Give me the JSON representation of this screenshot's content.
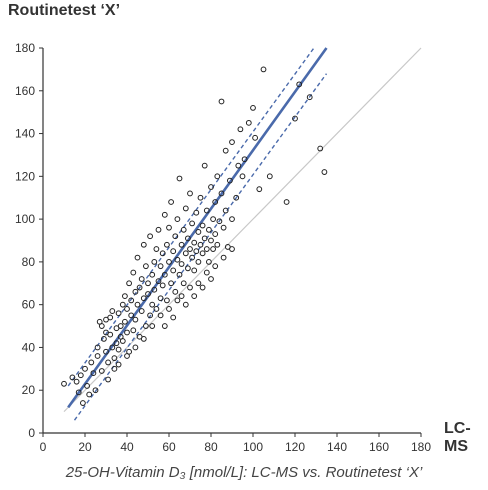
{
  "chart_data": {
    "type": "scatter",
    "title": "",
    "xlabel": "LC-MS",
    "ylabel": "Routinetest ‘X’",
    "caption": "25-OH-Vitamin D₃ [nmol/L]: LC-MS vs. Routinetest ‘X’",
    "xlim": [
      0,
      180
    ],
    "ylim": [
      0,
      180
    ],
    "x_ticks": [
      0,
      20,
      40,
      60,
      80,
      100,
      120,
      140,
      160,
      180
    ],
    "y_ticks": [
      0,
      20,
      40,
      60,
      80,
      100,
      120,
      140,
      160,
      180
    ],
    "grid": false,
    "legend": "none",
    "reference_lines": [
      {
        "kind": "identity",
        "from": [
          10,
          10
        ],
        "to": [
          180,
          180
        ],
        "style": "solid",
        "color": "#c8c8c8"
      },
      {
        "kind": "regression",
        "from": [
          12,
          12
        ],
        "to": [
          135,
          180
        ],
        "style": "solid",
        "color": "#4a6aab"
      },
      {
        "kind": "confidence-upper",
        "from": [
          12,
          22
        ],
        "to": [
          129,
          180
        ],
        "style": "dashed",
        "color": "#4a6aab"
      },
      {
        "kind": "confidence-lower",
        "from": [
          15,
          6
        ],
        "to": [
          135,
          168
        ],
        "style": "dashed",
        "color": "#4a6aab"
      }
    ],
    "points": [
      {
        "x": 10,
        "y": 23
      },
      {
        "x": 14,
        "y": 26
      },
      {
        "x": 16,
        "y": 24
      },
      {
        "x": 17,
        "y": 19
      },
      {
        "x": 18,
        "y": 27
      },
      {
        "x": 19,
        "y": 14
      },
      {
        "x": 20,
        "y": 30
      },
      {
        "x": 21,
        "y": 22
      },
      {
        "x": 22,
        "y": 18
      },
      {
        "x": 23,
        "y": 33
      },
      {
        "x": 24,
        "y": 28
      },
      {
        "x": 25,
        "y": 20
      },
      {
        "x": 26,
        "y": 40
      },
      {
        "x": 26,
        "y": 36
      },
      {
        "x": 27,
        "y": 52
      },
      {
        "x": 28,
        "y": 50
      },
      {
        "x": 28,
        "y": 29
      },
      {
        "x": 29,
        "y": 44
      },
      {
        "x": 30,
        "y": 47
      },
      {
        "x": 30,
        "y": 38
      },
      {
        "x": 30,
        "y": 53
      },
      {
        "x": 31,
        "y": 25
      },
      {
        "x": 31,
        "y": 33
      },
      {
        "x": 32,
        "y": 46
      },
      {
        "x": 32,
        "y": 54
      },
      {
        "x": 33,
        "y": 40
      },
      {
        "x": 33,
        "y": 57
      },
      {
        "x": 34,
        "y": 35
      },
      {
        "x": 34,
        "y": 30
      },
      {
        "x": 35,
        "y": 49
      },
      {
        "x": 35,
        "y": 42
      },
      {
        "x": 36,
        "y": 56
      },
      {
        "x": 36,
        "y": 39
      },
      {
        "x": 37,
        "y": 50
      },
      {
        "x": 37,
        "y": 45
      },
      {
        "x": 38,
        "y": 60
      },
      {
        "x": 38,
        "y": 43
      },
      {
        "x": 39,
        "y": 52
      },
      {
        "x": 39,
        "y": 64
      },
      {
        "x": 40,
        "y": 58
      },
      {
        "x": 40,
        "y": 47
      },
      {
        "x": 41,
        "y": 38
      },
      {
        "x": 41,
        "y": 70
      },
      {
        "x": 42,
        "y": 55
      },
      {
        "x": 42,
        "y": 62
      },
      {
        "x": 43,
        "y": 48
      },
      {
        "x": 43,
        "y": 75
      },
      {
        "x": 44,
        "y": 66
      },
      {
        "x": 44,
        "y": 53
      },
      {
        "x": 45,
        "y": 60
      },
      {
        "x": 45,
        "y": 82
      },
      {
        "x": 46,
        "y": 45
      },
      {
        "x": 46,
        "y": 68
      },
      {
        "x": 47,
        "y": 72
      },
      {
        "x": 47,
        "y": 57
      },
      {
        "x": 48,
        "y": 63
      },
      {
        "x": 48,
        "y": 88
      },
      {
        "x": 49,
        "y": 50
      },
      {
        "x": 49,
        "y": 78
      },
      {
        "x": 50,
        "y": 65
      },
      {
        "x": 50,
        "y": 70
      },
      {
        "x": 51,
        "y": 55
      },
      {
        "x": 51,
        "y": 92
      },
      {
        "x": 52,
        "y": 74
      },
      {
        "x": 52,
        "y": 60
      },
      {
        "x": 53,
        "y": 80
      },
      {
        "x": 53,
        "y": 67
      },
      {
        "x": 54,
        "y": 86
      },
      {
        "x": 54,
        "y": 58
      },
      {
        "x": 55,
        "y": 71
      },
      {
        "x": 55,
        "y": 95
      },
      {
        "x": 56,
        "y": 63
      },
      {
        "x": 56,
        "y": 78
      },
      {
        "x": 57,
        "y": 84
      },
      {
        "x": 57,
        "y": 69
      },
      {
        "x": 58,
        "y": 102
      },
      {
        "x": 58,
        "y": 74
      },
      {
        "x": 59,
        "y": 88
      },
      {
        "x": 59,
        "y": 62
      },
      {
        "x": 60,
        "y": 80
      },
      {
        "x": 60,
        "y": 96
      },
      {
        "x": 61,
        "y": 70
      },
      {
        "x": 61,
        "y": 108
      },
      {
        "x": 62,
        "y": 85
      },
      {
        "x": 62,
        "y": 76
      },
      {
        "x": 63,
        "y": 92
      },
      {
        "x": 63,
        "y": 66
      },
      {
        "x": 64,
        "y": 81
      },
      {
        "x": 64,
        "y": 100
      },
      {
        "x": 65,
        "y": 74
      },
      {
        "x": 65,
        "y": 119
      },
      {
        "x": 66,
        "y": 88
      },
      {
        "x": 66,
        "y": 79
      },
      {
        "x": 67,
        "y": 95
      },
      {
        "x": 67,
        "y": 70
      },
      {
        "x": 68,
        "y": 84
      },
      {
        "x": 68,
        "y": 105
      },
      {
        "x": 69,
        "y": 77
      },
      {
        "x": 69,
        "y": 91
      },
      {
        "x": 70,
        "y": 86
      },
      {
        "x": 70,
        "y": 112
      },
      {
        "x": 71,
        "y": 82
      },
      {
        "x": 71,
        "y": 98
      },
      {
        "x": 72,
        "y": 76
      },
      {
        "x": 72,
        "y": 89
      },
      {
        "x": 73,
        "y": 103
      },
      {
        "x": 73,
        "y": 85
      },
      {
        "x": 74,
        "y": 94
      },
      {
        "x": 74,
        "y": 80
      },
      {
        "x": 75,
        "y": 110
      },
      {
        "x": 75,
        "y": 88
      },
      {
        "x": 76,
        "y": 97
      },
      {
        "x": 76,
        "y": 84
      },
      {
        "x": 77,
        "y": 125
      },
      {
        "x": 77,
        "y": 91
      },
      {
        "x": 78,
        "y": 86
      },
      {
        "x": 78,
        "y": 104
      },
      {
        "x": 79,
        "y": 95
      },
      {
        "x": 79,
        "y": 80
      },
      {
        "x": 80,
        "y": 115
      },
      {
        "x": 80,
        "y": 90
      },
      {
        "x": 81,
        "y": 100
      },
      {
        "x": 81,
        "y": 86
      },
      {
        "x": 82,
        "y": 108
      },
      {
        "x": 82,
        "y": 93
      },
      {
        "x": 83,
        "y": 120
      },
      {
        "x": 83,
        "y": 88
      },
      {
        "x": 84,
        "y": 99
      },
      {
        "x": 85,
        "y": 155
      },
      {
        "x": 85,
        "y": 112
      },
      {
        "x": 86,
        "y": 96
      },
      {
        "x": 87,
        "y": 132
      },
      {
        "x": 87,
        "y": 104
      },
      {
        "x": 88,
        "y": 87
      },
      {
        "x": 89,
        "y": 118
      },
      {
        "x": 90,
        "y": 100
      },
      {
        "x": 90,
        "y": 136
      },
      {
        "x": 92,
        "y": 110
      },
      {
        "x": 93,
        "y": 125
      },
      {
        "x": 94,
        "y": 142
      },
      {
        "x": 95,
        "y": 120
      },
      {
        "x": 96,
        "y": 128
      },
      {
        "x": 98,
        "y": 145
      },
      {
        "x": 100,
        "y": 152
      },
      {
        "x": 101,
        "y": 138
      },
      {
        "x": 103,
        "y": 114
      },
      {
        "x": 105,
        "y": 170
      },
      {
        "x": 108,
        "y": 120
      },
      {
        "x": 116,
        "y": 108
      },
      {
        "x": 120,
        "y": 147
      },
      {
        "x": 122,
        "y": 163
      },
      {
        "x": 127,
        "y": 157
      },
      {
        "x": 132,
        "y": 133
      },
      {
        "x": 134,
        "y": 122
      },
      {
        "x": 44,
        "y": 40
      },
      {
        "x": 48,
        "y": 44
      },
      {
        "x": 52,
        "y": 50
      },
      {
        "x": 56,
        "y": 55
      },
      {
        "x": 60,
        "y": 58
      },
      {
        "x": 64,
        "y": 62
      },
      {
        "x": 66,
        "y": 64
      },
      {
        "x": 70,
        "y": 68
      },
      {
        "x": 74,
        "y": 70
      },
      {
        "x": 78,
        "y": 75
      },
      {
        "x": 82,
        "y": 78
      },
      {
        "x": 86,
        "y": 82
      },
      {
        "x": 90,
        "y": 86
      },
      {
        "x": 36,
        "y": 32
      },
      {
        "x": 40,
        "y": 36
      },
      {
        "x": 58,
        "y": 50
      },
      {
        "x": 62,
        "y": 54
      },
      {
        "x": 68,
        "y": 60
      },
      {
        "x": 72,
        "y": 64
      },
      {
        "x": 76,
        "y": 68
      },
      {
        "x": 80,
        "y": 72
      }
    ]
  }
}
